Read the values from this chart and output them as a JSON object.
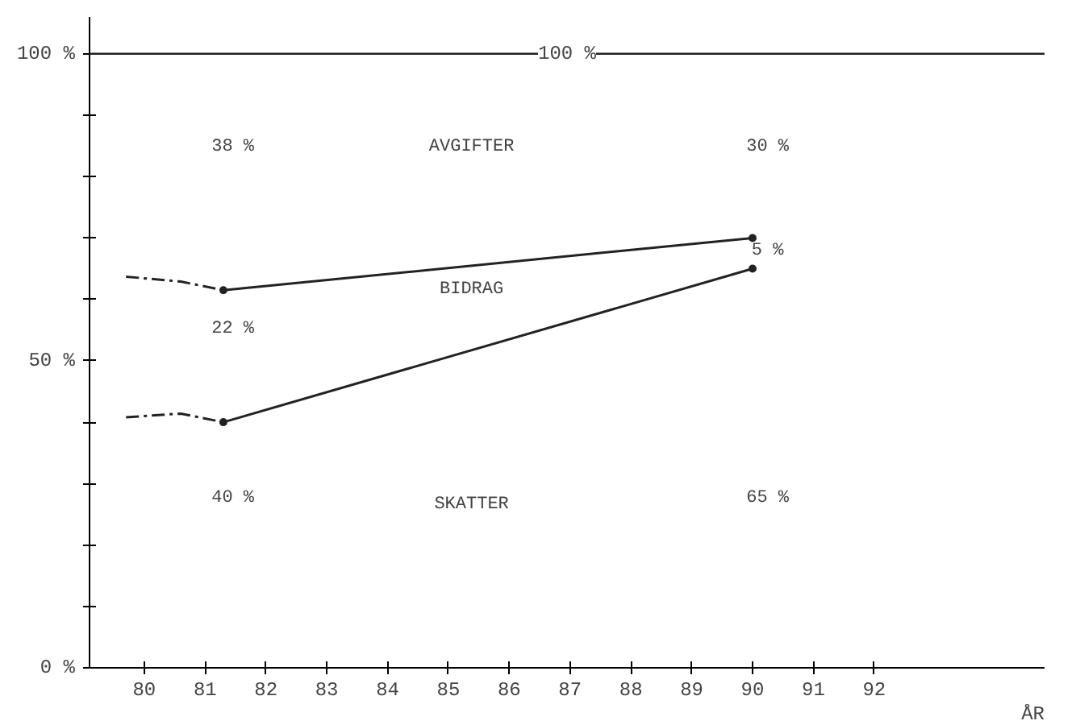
{
  "chart_data": {
    "type": "line",
    "xlabel": "ÅR",
    "xlim": [
      79.1,
      94.8
    ],
    "ylim": [
      0,
      106
    ],
    "xticks": [
      80,
      81,
      82,
      83,
      84,
      85,
      86,
      87,
      88,
      89,
      90,
      91,
      92
    ],
    "yticks": [
      {
        "value": 0,
        "label": "0 %"
      },
      {
        "value": 10,
        "label": null
      },
      {
        "value": 20,
        "label": null
      },
      {
        "value": 30,
        "label": null
      },
      {
        "value": 40,
        "label": null
      },
      {
        "value": 50,
        "label": "50 %"
      },
      {
        "value": 60,
        "label": null
      },
      {
        "value": 70,
        "label": null
      },
      {
        "value": 80,
        "label": null
      },
      {
        "value": 90,
        "label": null
      },
      {
        "value": 100,
        "label": "100 %"
      }
    ],
    "grid": false,
    "series": [
      {
        "color": "#222222",
        "x": [
          79.7,
          80.6,
          81.3
        ],
        "values": [
          40.8,
          41.4,
          40
        ],
        "line_style": "dashed",
        "marker": "none"
      },
      {
        "color": "#222222",
        "x": [
          81.3,
          90
        ],
        "values": [
          40,
          65
        ],
        "line_style": "solid",
        "marker": "circle"
      },
      {
        "color": "#222222",
        "x": [
          79.7,
          80.6,
          81.3
        ],
        "values": [
          63.7,
          62.9,
          61.5
        ],
        "line_style": "dashed",
        "marker": "none"
      },
      {
        "color": "#222222",
        "x": [
          81.3,
          90
        ],
        "values": [
          61.5,
          70
        ],
        "line_style": "solid",
        "marker": "circle"
      }
    ],
    "ref_lines": [
      {
        "axis": "y",
        "value": 100,
        "label": "100 %",
        "color": "#222222"
      }
    ],
    "annotations": [
      "38 %",
      "AVGIFTER",
      "30 %",
      "5 %",
      "BIDRAG",
      "22 %",
      "40 %",
      "SKATTER",
      "65 %"
    ]
  }
}
